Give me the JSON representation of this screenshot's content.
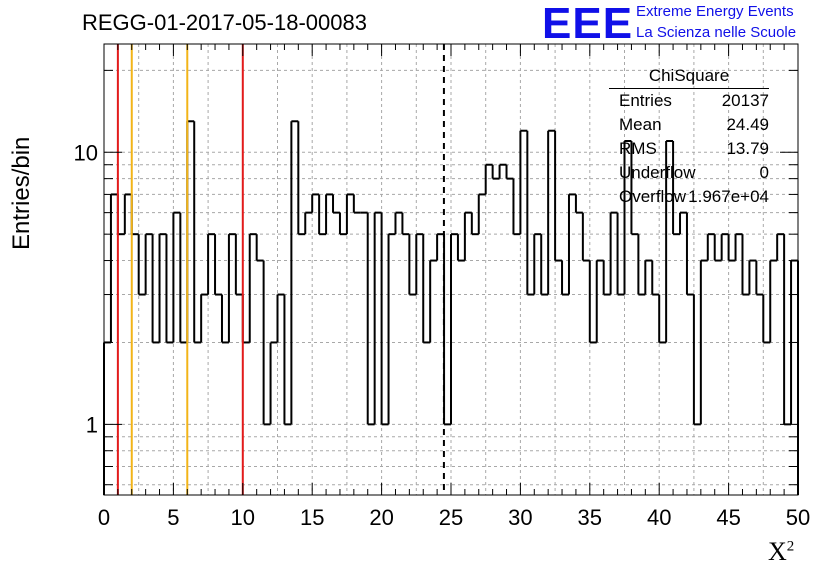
{
  "title": "REGG-01-2017-05-18-00083",
  "brand": {
    "logo": "EEE",
    "line1": "Extreme Energy Events",
    "line2": "La Scienza nelle Scuole"
  },
  "stats": {
    "title": "ChiSquare",
    "rows": [
      {
        "k": "Entries",
        "v": "20137"
      },
      {
        "k": "Mean",
        "v": "24.49"
      },
      {
        "k": "RMS",
        "v": "13.79"
      },
      {
        "k": "Underflow",
        "v": "0"
      },
      {
        "k": "Overflow",
        "v": "1.967e+04"
      }
    ]
  },
  "colors": {
    "red": "#e21b1b",
    "orange": "#f2b418",
    "hist": "#000000"
  },
  "chart_data": {
    "type": "histogram",
    "ylabel": "Entries/bin",
    "xlabel": "X",
    "xlabel_sup": "2",
    "xlim": [
      0,
      50
    ],
    "ylim": [
      0.55,
      25
    ],
    "log_y": true,
    "grid": true,
    "bin_width": 0.5,
    "x_ticks": [
      0,
      5,
      10,
      15,
      20,
      25,
      30,
      35,
      40,
      45,
      50
    ],
    "y_ticks": [
      1,
      10
    ],
    "values": [
      2,
      7,
      5,
      7,
      5,
      3,
      5,
      2,
      5,
      2,
      6,
      2,
      13,
      2,
      3,
      5,
      3,
      2,
      5,
      3,
      2,
      5,
      4,
      1,
      2,
      3,
      1,
      13,
      5,
      6,
      7,
      5,
      7,
      6,
      5,
      7,
      6,
      6,
      1,
      6,
      1,
      5,
      6,
      5,
      3,
      5,
      2,
      4,
      5,
      1,
      5,
      4,
      6,
      5,
      7,
      9,
      8,
      9,
      8,
      5,
      12,
      3,
      5,
      3,
      12,
      4,
      3,
      7,
      6,
      4,
      2,
      4,
      3,
      6,
      3,
      11,
      5,
      3,
      4,
      3,
      2,
      11,
      5,
      6,
      3,
      1,
      4,
      5,
      4,
      5,
      4,
      5,
      3,
      4,
      3,
      2,
      4,
      5,
      1,
      4
    ],
    "markers": [
      {
        "x": 1,
        "color": "red",
        "style": "solid"
      },
      {
        "x": 2,
        "color": "orange",
        "style": "solid"
      },
      {
        "x": 6,
        "color": "orange",
        "style": "solid"
      },
      {
        "x": 10,
        "color": "red",
        "style": "solid"
      },
      {
        "x": 24.49,
        "color": "black",
        "style": "dashed"
      }
    ]
  }
}
